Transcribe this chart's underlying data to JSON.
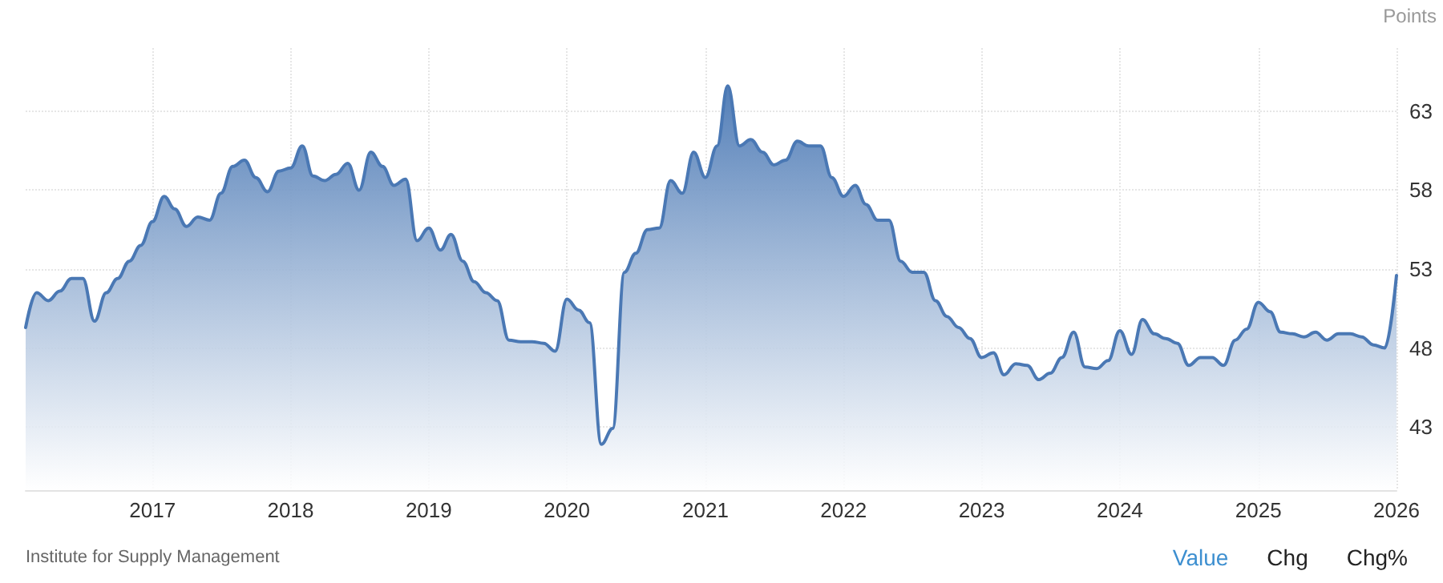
{
  "chart_data": {
    "type": "area",
    "ylabel": "Points",
    "x": [
      "2016-02",
      "2016-03",
      "2016-04",
      "2016-05",
      "2016-06",
      "2016-07",
      "2016-08",
      "2016-09",
      "2016-10",
      "2016-11",
      "2016-12",
      "2017-01",
      "2017-02",
      "2017-03",
      "2017-04",
      "2017-05",
      "2017-06",
      "2017-07",
      "2017-08",
      "2017-09",
      "2017-10",
      "2017-11",
      "2017-12",
      "2018-01",
      "2018-02",
      "2018-03",
      "2018-04",
      "2018-05",
      "2018-06",
      "2018-07",
      "2018-08",
      "2018-09",
      "2018-10",
      "2018-11",
      "2018-12",
      "2019-01",
      "2019-02",
      "2019-03",
      "2019-04",
      "2019-05",
      "2019-06",
      "2019-07",
      "2019-08",
      "2019-09",
      "2019-10",
      "2019-11",
      "2019-12",
      "2020-01",
      "2020-02",
      "2020-03",
      "2020-04",
      "2020-05",
      "2020-06",
      "2020-07",
      "2020-08",
      "2020-09",
      "2020-10",
      "2020-11",
      "2020-12",
      "2021-01",
      "2021-02",
      "2021-03",
      "2021-04",
      "2021-05",
      "2021-06",
      "2021-07",
      "2021-08",
      "2021-09",
      "2021-10",
      "2021-11",
      "2021-12",
      "2022-01",
      "2022-02",
      "2022-03",
      "2022-04",
      "2022-05",
      "2022-06",
      "2022-07",
      "2022-08",
      "2022-09",
      "2022-10",
      "2022-11",
      "2022-12",
      "2023-01",
      "2023-02",
      "2023-03",
      "2023-04",
      "2023-05",
      "2023-06",
      "2023-07",
      "2023-08",
      "2023-09",
      "2023-10",
      "2023-11",
      "2023-12",
      "2024-01",
      "2024-02",
      "2024-03",
      "2024-04",
      "2024-05",
      "2024-06",
      "2024-07",
      "2024-08",
      "2024-09",
      "2024-10",
      "2024-11",
      "2024-12",
      "2025-01",
      "2025-02",
      "2025-03",
      "2025-04",
      "2025-05",
      "2025-06",
      "2025-07",
      "2025-08",
      "2025-09",
      "2025-10",
      "2025-11",
      "2025-12",
      "2026-01"
    ],
    "series": [
      {
        "color": "#4a78b4",
        "values": [
          49.3,
          51.5,
          51.0,
          51.6,
          52.4,
          52.4,
          49.7,
          51.5,
          52.4,
          53.5,
          54.5,
          56.0,
          57.6,
          56.8,
          55.7,
          56.3,
          56.1,
          57.8,
          59.5,
          59.9,
          58.8,
          57.9,
          59.2,
          59.4,
          60.8,
          58.9,
          58.6,
          59.0,
          59.7,
          58.0,
          60.4,
          59.5,
          58.3,
          58.7,
          54.8,
          55.6,
          54.2,
          55.2,
          53.5,
          52.2,
          51.5,
          51.0,
          48.5,
          48.4,
          48.4,
          48.3,
          47.8,
          51.1,
          50.4,
          49.6,
          41.9,
          42.9,
          52.8,
          54.0,
          55.5,
          55.6,
          58.6,
          57.8,
          60.4,
          58.8,
          60.8,
          64.6,
          60.8,
          61.2,
          60.4,
          59.6,
          59.9,
          61.1,
          60.8,
          60.8,
          58.8,
          57.6,
          58.3,
          57.1,
          56.1,
          56.1,
          53.5,
          52.8,
          52.8,
          51.0,
          50.0,
          49.3,
          48.6,
          47.4,
          47.7,
          46.3,
          47.0,
          46.9,
          46.0,
          46.4,
          47.4,
          49.0,
          46.8,
          46.7,
          47.2,
          49.1,
          47.6,
          49.8,
          48.9,
          48.6,
          48.3,
          46.9,
          47.4,
          47.4,
          46.9,
          48.5,
          49.2,
          50.9,
          50.3,
          49.0,
          48.9,
          48.7,
          49.0,
          48.5,
          48.9,
          48.9,
          48.7,
          48.2,
          48.0,
          52.6
        ]
      }
    ],
    "xlim": [
      "2016-02",
      "2026-01"
    ],
    "xticks": [
      "2017",
      "2018",
      "2019",
      "2020",
      "2021",
      "2022",
      "2023",
      "2024",
      "2025",
      "2026"
    ],
    "ylim": [
      39,
      67
    ],
    "yticks": [
      43,
      48,
      53,
      58,
      63
    ],
    "grid": true,
    "marker": "none",
    "line_style": "solid",
    "annotations": [
      "Institute for Supply Management",
      "Value",
      "Chg",
      "Chg%"
    ]
  }
}
